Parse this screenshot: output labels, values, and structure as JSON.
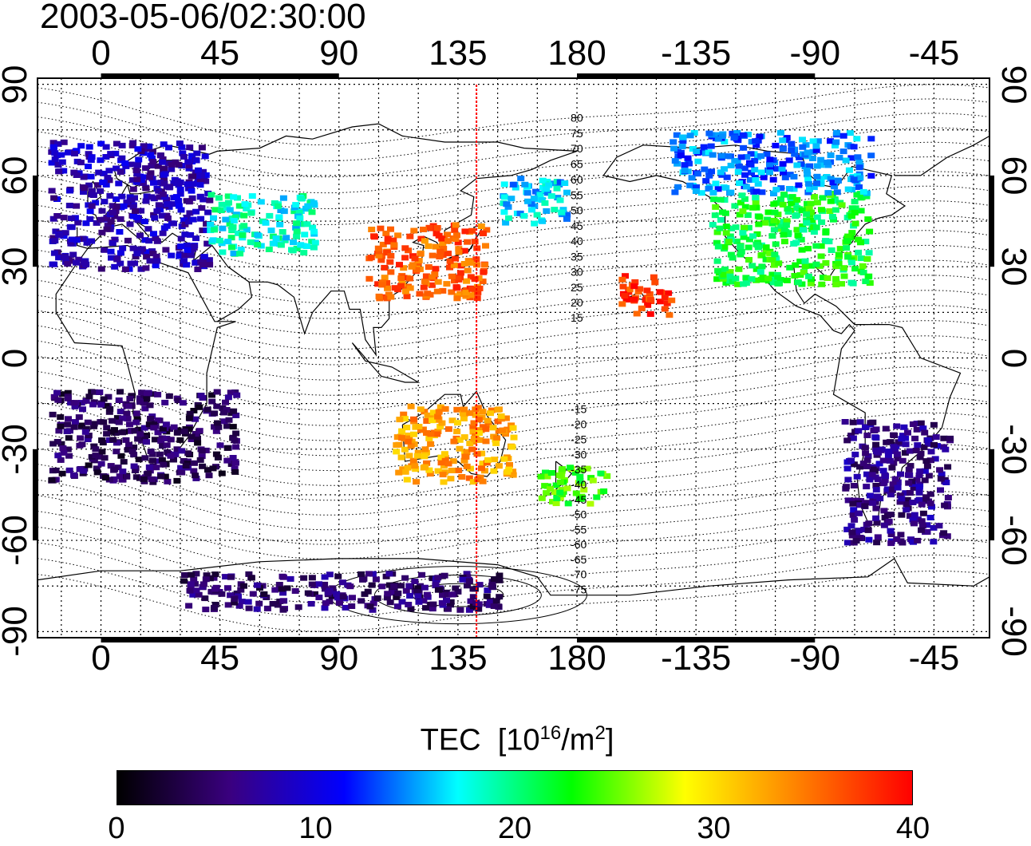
{
  "title": "2003-05-06/02:30:00",
  "axes": {
    "lon_ticks": [
      "0",
      "45",
      "90",
      "135",
      "180",
      "-135",
      "-90",
      "-45"
    ],
    "lat_ticks": [
      "90",
      "60",
      "30",
      "0",
      "-30",
      "-60",
      "-90"
    ],
    "lon_range": [
      -24,
      336
    ],
    "lat_range": [
      -92,
      92
    ]
  },
  "map": {
    "grid": true,
    "coastlines": true,
    "magnetic_latitude_contour_labels": [
      "80",
      "75",
      "70",
      "65",
      "60",
      "55",
      "50",
      "45",
      "40",
      "35",
      "30",
      "25",
      "20",
      "15",
      "-15",
      "-20",
      "-25",
      "-30",
      "-35",
      "-40",
      "-45",
      "-50",
      "-55",
      "-60",
      "-65",
      "-70",
      "-75"
    ],
    "meridian_marker_lon": 142,
    "meridian_marker_color": "#ff0000"
  },
  "colorbar": {
    "title_main": "TEC",
    "title_unit_prefix": "[10",
    "title_unit_exp1": "16",
    "title_unit_mid": "/m",
    "title_unit_exp2": "2",
    "title_unit_suffix": "]",
    "labels": [
      "0",
      "10",
      "20",
      "30",
      "40"
    ],
    "range": [
      0,
      40
    ],
    "colormap": [
      "#000000",
      "#3a0080",
      "#0000ff",
      "#00ffff",
      "#00ff00",
      "#ffff00",
      "#ff8000",
      "#ff0000"
    ]
  },
  "chart_data": {
    "type": "heatmap",
    "title": "2003-05-06/02:30:00",
    "xlabel": "",
    "ylabel": "",
    "value_label": "TEC [10^16/m^2]",
    "xlim": [
      -24,
      336
    ],
    "ylim": [
      -92,
      92
    ],
    "clim": [
      0,
      40
    ],
    "regions": [
      {
        "lon": [
          -20,
          40
        ],
        "lat": [
          30,
          72
        ],
        "tec": 8
      },
      {
        "lon": [
          40,
          80
        ],
        "lat": [
          35,
          55
        ],
        "tec": 18
      },
      {
        "lon": [
          100,
          145
        ],
        "lat": [
          20,
          45
        ],
        "tec": 36
      },
      {
        "lon": [
          150,
          175
        ],
        "lat": [
          45,
          60
        ],
        "tec": 16
      },
      {
        "lon": [
          195,
          215
        ],
        "lat": [
          15,
          28
        ],
        "tec": 38
      },
      {
        "lon": [
          230,
          290
        ],
        "lat": [
          25,
          55
        ],
        "tec": 22
      },
      {
        "lon": [
          215,
          290
        ],
        "lat": [
          55,
          75
        ],
        "tec": 14
      },
      {
        "lon": [
          -20,
          50
        ],
        "lat": [
          -40,
          -10
        ],
        "tec": 4
      },
      {
        "lon": [
          110,
          155
        ],
        "lat": [
          -40,
          -15
        ],
        "tec": 33
      },
      {
        "lon": [
          165,
          190
        ],
        "lat": [
          -48,
          -35
        ],
        "tec": 24
      },
      {
        "lon": [
          280,
          320
        ],
        "lat": [
          -60,
          -20
        ],
        "tec": 6
      },
      {
        "lon": [
          30,
          150
        ],
        "lat": [
          -82,
          -70
        ],
        "tec": 5
      }
    ]
  }
}
